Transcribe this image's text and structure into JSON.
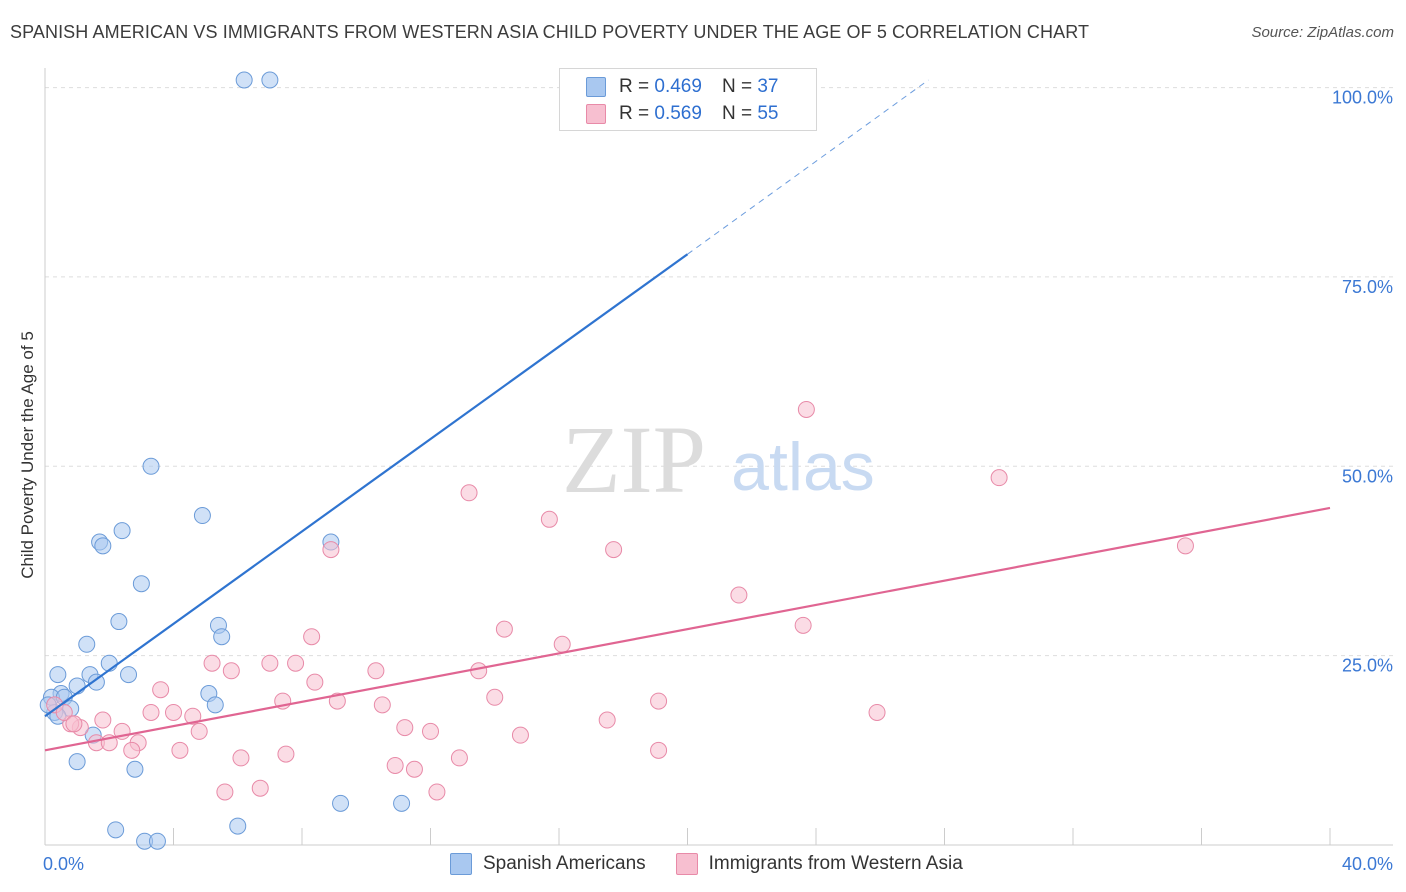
{
  "title": "SPANISH AMERICAN VS IMMIGRANTS FROM WESTERN ASIA CHILD POVERTY UNDER THE AGE OF 5 CORRELATION CHART",
  "source": "Source: ZipAtlas.com",
  "watermark": {
    "zip": "ZIP",
    "atlas": "atlas"
  },
  "legend": {
    "rows": [
      {
        "r_label": "R =",
        "r_value": "0.469",
        "n_label": "N =",
        "n_value": "37",
        "color": "#a9c8f0",
        "border": "#6b9bd8"
      },
      {
        "r_label": "R =",
        "r_value": "0.569",
        "n_label": "N =",
        "n_value": "55",
        "color": "#f7bfd0",
        "border": "#e88aa8"
      }
    ]
  },
  "bottom_legend": [
    {
      "label": "Spanish Americans",
      "color": "#a9c8f0",
      "border": "#6b9bd8"
    },
    {
      "label": "Immigrants from Western Asia",
      "color": "#f7bfd0",
      "border": "#e88aa8"
    }
  ],
  "chart_data": {
    "type": "scatter",
    "title": "SPANISH AMERICAN VS IMMIGRANTS FROM WESTERN ASIA CHILD POVERTY UNDER THE AGE OF 5 CORRELATION CHART",
    "xlabel": "",
    "ylabel": "Child Poverty Under the Age of 5",
    "xlim": [
      0,
      40
    ],
    "ylim": [
      0,
      100
    ],
    "x_tick_labels": [
      {
        "value": 0,
        "label": "0.0%"
      },
      {
        "value": 40,
        "label": "40.0%"
      }
    ],
    "y_tick_labels": [
      {
        "value": 25,
        "label": "25.0%"
      },
      {
        "value": 50,
        "label": "50.0%"
      },
      {
        "value": 75,
        "label": "75.0%"
      },
      {
        "value": 100,
        "label": "100.0%"
      }
    ],
    "gridlines": [
      25,
      50,
      75,
      100
    ],
    "x_minor_ticks": [
      4,
      8,
      12,
      16,
      20,
      24,
      28,
      32,
      36,
      40
    ],
    "series": [
      {
        "name": "Spanish Americans",
        "color": "#a9c8f0",
        "border": "#6b9bd8",
        "trend": {
          "x0": 0,
          "y0": 17,
          "x1": 20,
          "y1": 78,
          "dash_x1": 27.5,
          "dash_y1": 101,
          "color": "#2f74d0"
        },
        "points": [
          [
            6.2,
            101
          ],
          [
            7.0,
            101
          ],
          [
            3.3,
            50.0
          ],
          [
            4.9,
            43.5
          ],
          [
            2.4,
            41.5
          ],
          [
            1.7,
            40.0
          ],
          [
            1.8,
            39.5
          ],
          [
            8.9,
            40.0
          ],
          [
            3.0,
            34.5
          ],
          [
            2.3,
            29.5
          ],
          [
            5.4,
            29.0
          ],
          [
            5.5,
            27.5
          ],
          [
            1.3,
            26.5
          ],
          [
            2.0,
            24.0
          ],
          [
            0.4,
            22.5
          ],
          [
            1.4,
            22.5
          ],
          [
            2.6,
            22.5
          ],
          [
            1.0,
            21.0
          ],
          [
            1.6,
            21.5
          ],
          [
            0.5,
            20.0
          ],
          [
            0.2,
            19.5
          ],
          [
            0.6,
            19.5
          ],
          [
            5.1,
            20.0
          ],
          [
            5.3,
            18.5
          ],
          [
            0.8,
            18.0
          ],
          [
            0.3,
            17.5
          ],
          [
            1.5,
            14.5
          ],
          [
            1.0,
            11.0
          ],
          [
            2.8,
            10.0
          ],
          [
            9.2,
            5.5
          ],
          [
            11.1,
            5.5
          ],
          [
            6.0,
            2.5
          ],
          [
            2.2,
            2.0
          ],
          [
            3.1,
            0.5
          ],
          [
            3.5,
            0.5
          ],
          [
            0.1,
            18.5
          ],
          [
            0.4,
            17.0
          ]
        ]
      },
      {
        "name": "Immigrants from Western Asia",
        "color": "#f7bfd0",
        "border": "#e88aa8",
        "trend": {
          "x0": 0,
          "y0": 12.5,
          "x1": 40,
          "y1": 44.5,
          "color": "#e06592"
        },
        "points": [
          [
            23.7,
            57.5
          ],
          [
            29.7,
            48.5
          ],
          [
            13.2,
            46.5
          ],
          [
            15.7,
            43.0
          ],
          [
            35.5,
            39.5
          ],
          [
            8.9,
            39.0
          ],
          [
            17.7,
            39.0
          ],
          [
            21.6,
            33.0
          ],
          [
            14.3,
            28.5
          ],
          [
            23.6,
            29.0
          ],
          [
            8.3,
            27.5
          ],
          [
            16.1,
            26.5
          ],
          [
            5.2,
            24.0
          ],
          [
            7.0,
            24.0
          ],
          [
            7.8,
            24.0
          ],
          [
            5.8,
            23.0
          ],
          [
            10.3,
            23.0
          ],
          [
            13.5,
            23.0
          ],
          [
            8.4,
            21.5
          ],
          [
            3.6,
            20.5
          ],
          [
            14.0,
            19.5
          ],
          [
            9.1,
            19.0
          ],
          [
            7.4,
            19.0
          ],
          [
            19.1,
            19.0
          ],
          [
            10.5,
            18.5
          ],
          [
            25.9,
            17.5
          ],
          [
            3.3,
            17.5
          ],
          [
            4.0,
            17.5
          ],
          [
            4.6,
            17.0
          ],
          [
            17.5,
            16.5
          ],
          [
            11.2,
            15.5
          ],
          [
            12.0,
            15.0
          ],
          [
            4.8,
            15.0
          ],
          [
            2.4,
            15.0
          ],
          [
            14.8,
            14.5
          ],
          [
            1.8,
            16.5
          ],
          [
            1.1,
            15.5
          ],
          [
            0.8,
            16.0
          ],
          [
            1.6,
            13.5
          ],
          [
            2.9,
            13.5
          ],
          [
            2.0,
            13.5
          ],
          [
            2.7,
            12.5
          ],
          [
            4.2,
            12.5
          ],
          [
            19.1,
            12.5
          ],
          [
            6.1,
            11.5
          ],
          [
            7.5,
            12.0
          ],
          [
            12.9,
            11.5
          ],
          [
            10.9,
            10.5
          ],
          [
            11.5,
            10.0
          ],
          [
            5.6,
            7.0
          ],
          [
            6.7,
            7.5
          ],
          [
            12.2,
            7.0
          ],
          [
            0.3,
            18.5
          ],
          [
            0.6,
            17.5
          ],
          [
            0.9,
            16.0
          ]
        ]
      }
    ]
  }
}
